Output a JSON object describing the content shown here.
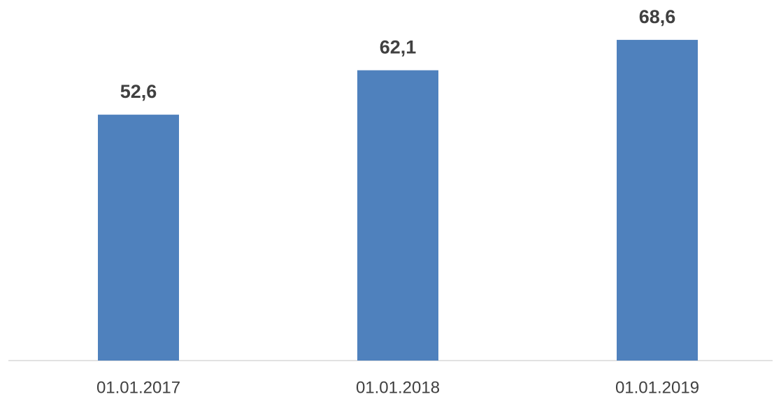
{
  "chart_data": {
    "type": "bar",
    "categories": [
      "01.01.2017",
      "01.01.2018",
      "01.01.2019"
    ],
    "values": [
      52.6,
      62.1,
      68.6
    ],
    "value_labels": [
      "52,6",
      "62,1",
      "68,6"
    ],
    "color": "#4f81bd"
  }
}
